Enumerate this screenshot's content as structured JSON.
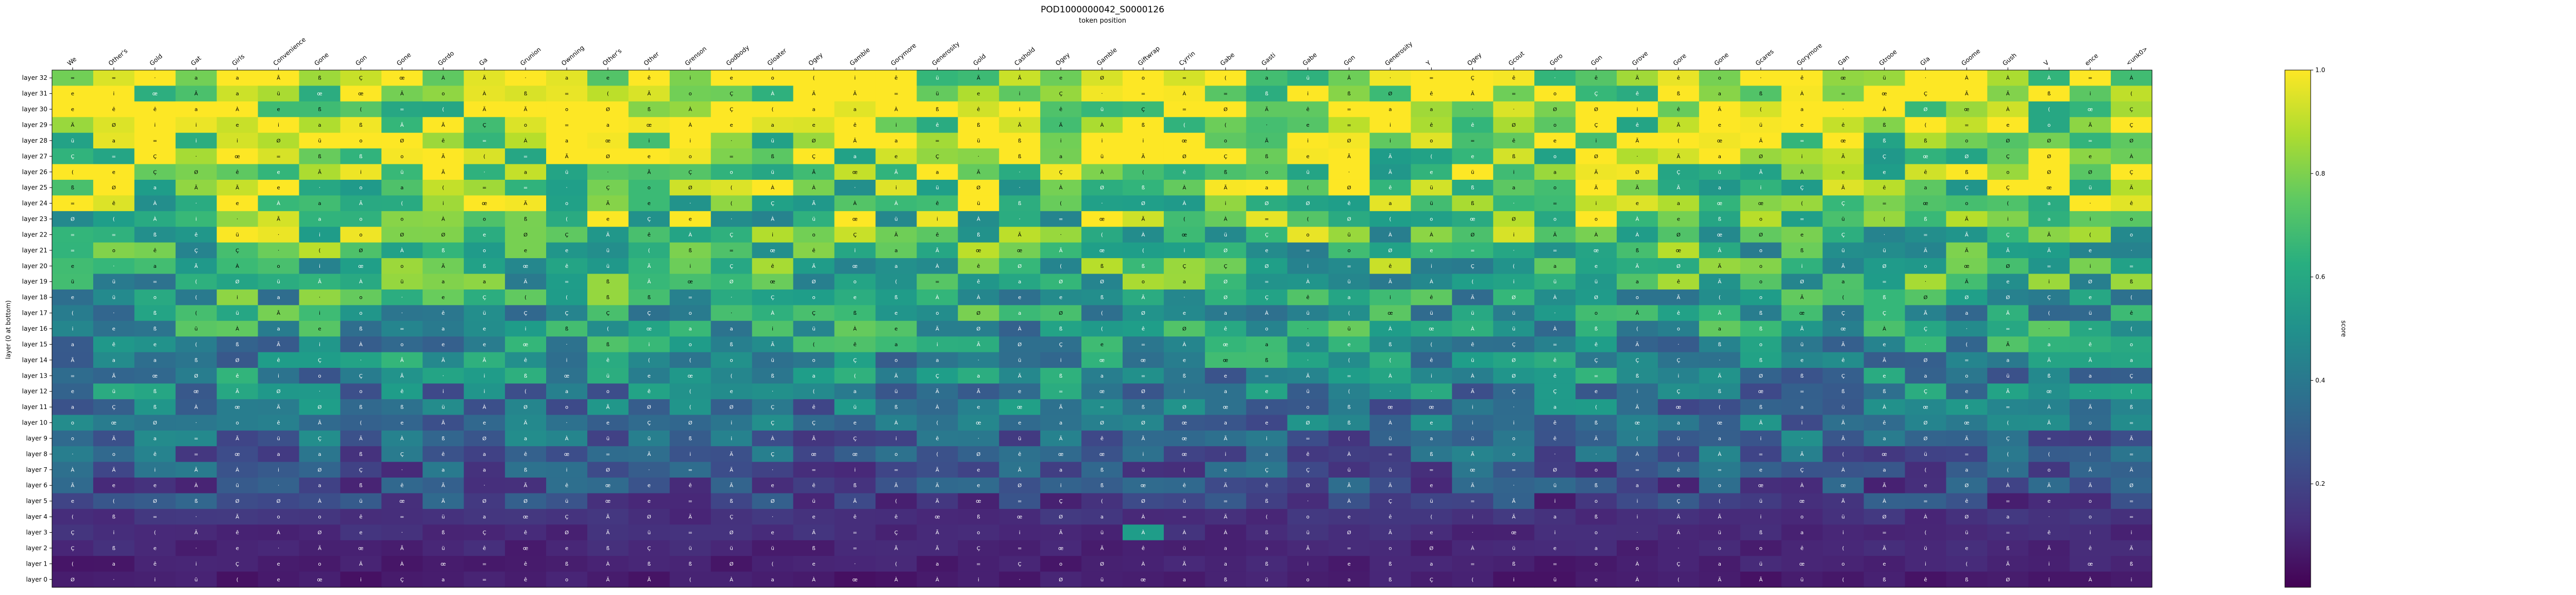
{
  "chart_data": {
    "type": "heatmap",
    "title": "POD1000000042_S0000126",
    "subtitle": "token position",
    "ylabel": "layer (0 at bottom)",
    "colorbar_label": "score",
    "colormap": "viridis",
    "vmin": 0.0,
    "vmax": 1.0,
    "colorbar_ticks": [
      0.2,
      0.4,
      0.6,
      0.8,
      1.0
    ],
    "tokens": [
      "We",
      "Other's",
      "Gold",
      "Gat",
      "Girls",
      "Convenience",
      "Gone",
      "Gon",
      "Gone",
      "Gordo",
      "Ga",
      "Grunion",
      "Ownning",
      "Other's",
      "Other",
      "Grenson",
      "Godbody",
      "Gloater",
      "Ogey",
      "Gamble",
      "Gorymore",
      "Generosity",
      "Gold",
      "Cashold",
      "Ogey",
      "Gamble",
      "Giftwrap",
      "Cyrrin",
      "Gabe",
      "Gasti",
      "Gabe",
      "Gon",
      "Generosity",
      "Y",
      "Ogey",
      "Gcout",
      "Goro",
      "Gon",
      "Grove",
      "Gore",
      "Gone",
      "Gcares",
      "Gorymore",
      "Gan",
      "Gtrooe",
      "Gla",
      "Goome",
      "Gush",
      "V",
      "ence",
      "<unk0>"
    ],
    "layers": [
      "layer 32",
      "layer 31",
      "layer 30",
      "layer 29",
      "layer 28",
      "layer 27",
      "layer 26",
      "layer 25",
      "layer 24",
      "layer 23",
      "layer 22",
      "layer 21",
      "layer 20",
      "layer 19",
      "layer 18",
      "layer 17",
      "layer 16",
      "layer 15",
      "layer 14",
      "layer 13",
      "layer 12",
      "layer 11",
      "layer 10",
      "layer 9",
      "layer 8",
      "layer 7",
      "layer 6",
      "layer 5",
      "layer 4",
      "layer 3",
      "layer 2",
      "layer 1",
      "layer 0"
    ],
    "glyphs": [
      "o",
      "a",
      "Ã",
      "À",
      "ß",
      "Ø",
      "Ä",
      "i",
      "=",
      "·",
      "(",
      "Ç",
      "œ",
      "ê",
      "e",
      "ü"
    ]
  }
}
